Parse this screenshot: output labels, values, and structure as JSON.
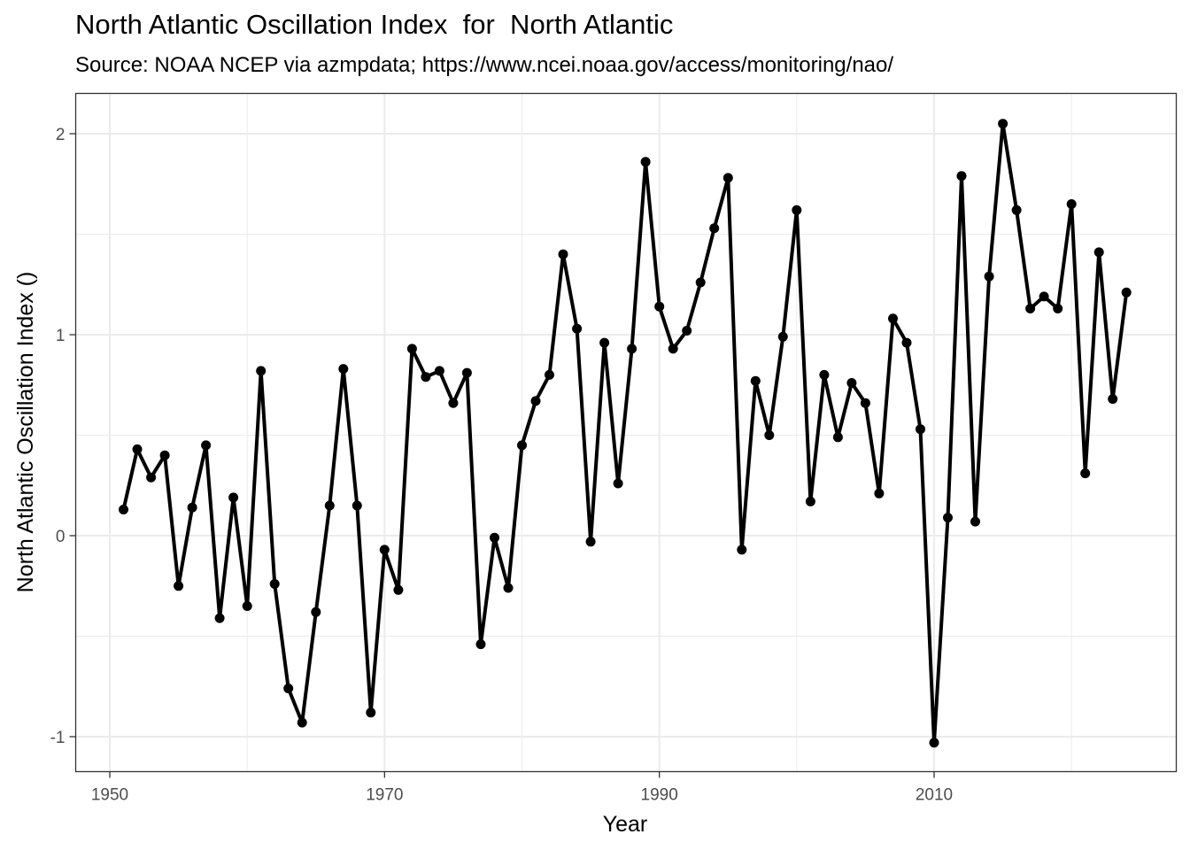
{
  "chart_data": {
    "type": "line",
    "title": "North Atlantic Oscillation Index  for  North Atlantic",
    "subtitle": "Source: NOAA NCEP via azmpdata; https://www.ncei.noaa.gov/access/monitoring/nao/",
    "xlabel": "Year",
    "ylabel": "North Atlantic Oscillation Index ()",
    "xlim": [
      1948.7,
      1528.7
    ],
    "ylim": [
      -1.18,
      2.2
    ],
    "grid": true,
    "x_ticks": [
      "1950",
      "1970",
      "1990",
      "2010"
    ],
    "y_ticks": [
      "-1",
      "0",
      "1",
      "2"
    ],
    "x_tick_values": [
      1950,
      1970,
      1990,
      2010
    ],
    "y_tick_values": [
      -1,
      0,
      1,
      2
    ],
    "series": [
      {
        "color": "#000000",
        "x": [
          1951,
          1952,
          1953,
          1954,
          1955,
          1956,
          1957,
          1958,
          1959,
          1960,
          1961,
          1962,
          1963,
          1964,
          1965,
          1966,
          1967,
          1968,
          1969,
          1970,
          1971,
          1972,
          1973,
          1974,
          1975,
          1976,
          1977,
          1978,
          1979,
          1980,
          1981,
          1982,
          1983,
          1984,
          1985,
          1986,
          1987,
          1988,
          1989,
          1990,
          1991,
          1992,
          1993,
          1994,
          1995,
          1996,
          1997,
          1998,
          1999,
          2000,
          2001,
          2002,
          2003,
          2004,
          2005,
          2006,
          2007,
          2008,
          2009,
          2010,
          2011,
          2012,
          2013,
          2014,
          2015,
          2016,
          2017,
          2018,
          2019,
          2020,
          2021,
          2022,
          2023,
          2024
        ],
        "y": [
          0.13,
          0.43,
          0.29,
          0.4,
          -0.25,
          0.14,
          0.45,
          -0.41,
          0.19,
          -0.35,
          0.82,
          -0.24,
          -0.76,
          -0.93,
          -0.38,
          0.15,
          0.83,
          0.15,
          -0.88,
          -0.07,
          -0.27,
          0.93,
          0.79,
          0.82,
          0.66,
          0.81,
          -0.54,
          -0.01,
          -0.26,
          0.45,
          0.67,
          0.8,
          1.4,
          1.03,
          -0.03,
          0.96,
          0.26,
          0.93,
          1.86,
          1.14,
          0.93,
          1.02,
          1.26,
          1.53,
          1.78,
          -0.07,
          0.77,
          0.5,
          0.99,
          1.62,
          0.17,
          0.8,
          0.49,
          0.76,
          0.66,
          0.21,
          1.08,
          0.96,
          0.53,
          -1.03,
          0.09,
          1.79,
          0.07,
          1.29,
          2.05,
          1.62,
          1.13,
          1.19,
          1.13,
          1.65,
          0.31,
          1.41,
          0.68,
          1.21
        ]
      }
    ]
  }
}
